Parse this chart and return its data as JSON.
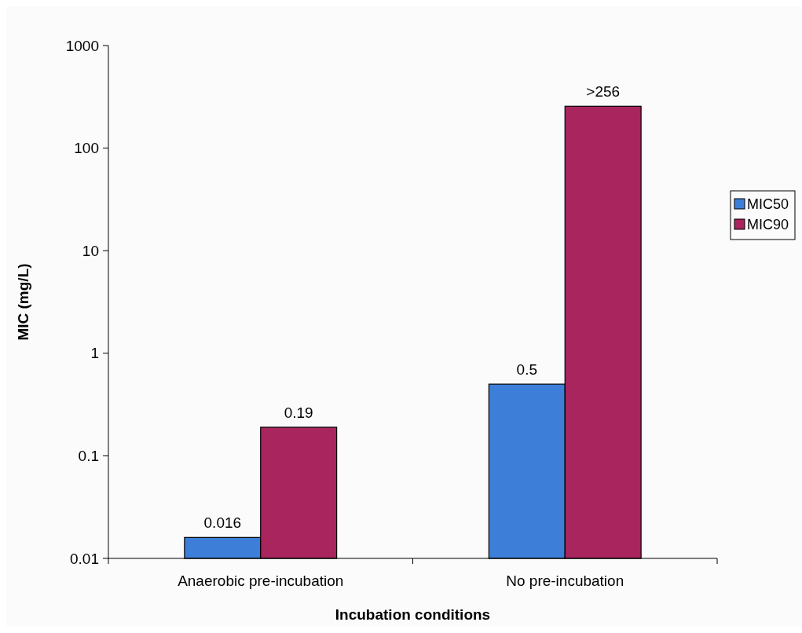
{
  "chart_data": {
    "type": "bar",
    "xlabel": "Incubation conditions",
    "ylabel": "MIC (mg/L)",
    "categories": [
      "Anaerobic pre-incubation",
      "No pre-incubation"
    ],
    "series": [
      {
        "name": "MIC50",
        "color": "#3d7fd8",
        "values": [
          0.016,
          0.5
        ],
        "value_labels": [
          "0.016",
          "0.5"
        ]
      },
      {
        "name": "MIC90",
        "color": "#a8255e",
        "values": [
          0.19,
          256
        ],
        "value_labels": [
          "0.19",
          ">256"
        ]
      }
    ],
    "log": true,
    "ylim": [
      0.01,
      1000
    ],
    "yticks": [
      0.01,
      0.1,
      1,
      10,
      100,
      1000
    ],
    "grid": false,
    "legend": "right"
  }
}
